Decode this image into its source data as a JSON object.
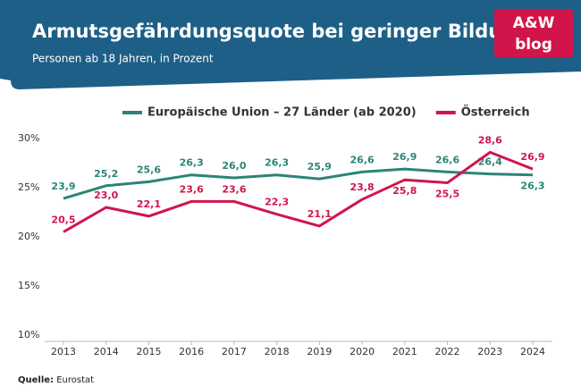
{
  "header": {
    "title": "Armutsgefährdungsquote bei geringer Bildung",
    "subtitle": "Personen ab 18 Jahren, in Prozent",
    "logo_top": "A&W",
    "logo_bottom": "blog"
  },
  "chart_data": {
    "type": "line",
    "categories": [
      "2013",
      "2014",
      "2015",
      "2016",
      "2017",
      "2018",
      "2019",
      "2020",
      "2021",
      "2022",
      "2023",
      "2024"
    ],
    "series": [
      {
        "name": "Europäische Union – 27 Länder (ab 2020)",
        "color": "#2b8477",
        "values": [
          23.9,
          25.2,
          25.6,
          26.3,
          26.0,
          26.3,
          25.9,
          26.6,
          26.9,
          26.6,
          26.4,
          26.3
        ],
        "value_labels": [
          "23,9",
          "25,2",
          "25,6",
          "26,3",
          "26,0",
          "26,3",
          "25,9",
          "26,6",
          "26,9",
          "26,6",
          "26,4",
          "26,3"
        ]
      },
      {
        "name": "Österreich",
        "color": "#d1154b",
        "values": [
          20.5,
          23.0,
          22.1,
          23.6,
          23.6,
          22.3,
          21.1,
          23.8,
          25.8,
          25.5,
          28.6,
          26.9
        ],
        "value_labels": [
          "20,5",
          "23,0",
          "22,1",
          "23,6",
          "23,6",
          "22,3",
          "21,1",
          "23,8",
          "25,8",
          "25,5",
          "28,6",
          "26,9"
        ]
      }
    ],
    "ylim": [
      9,
      31
    ],
    "yticks": [
      {
        "value": 10,
        "label": "10%"
      },
      {
        "value": 15,
        "label": "15%"
      },
      {
        "value": 20,
        "label": "20%"
      },
      {
        "value": 25,
        "label": "25%"
      },
      {
        "value": 30,
        "label": "30%"
      }
    ],
    "grid": false,
    "source_label": "Quelle:",
    "source": "Eurostat"
  }
}
